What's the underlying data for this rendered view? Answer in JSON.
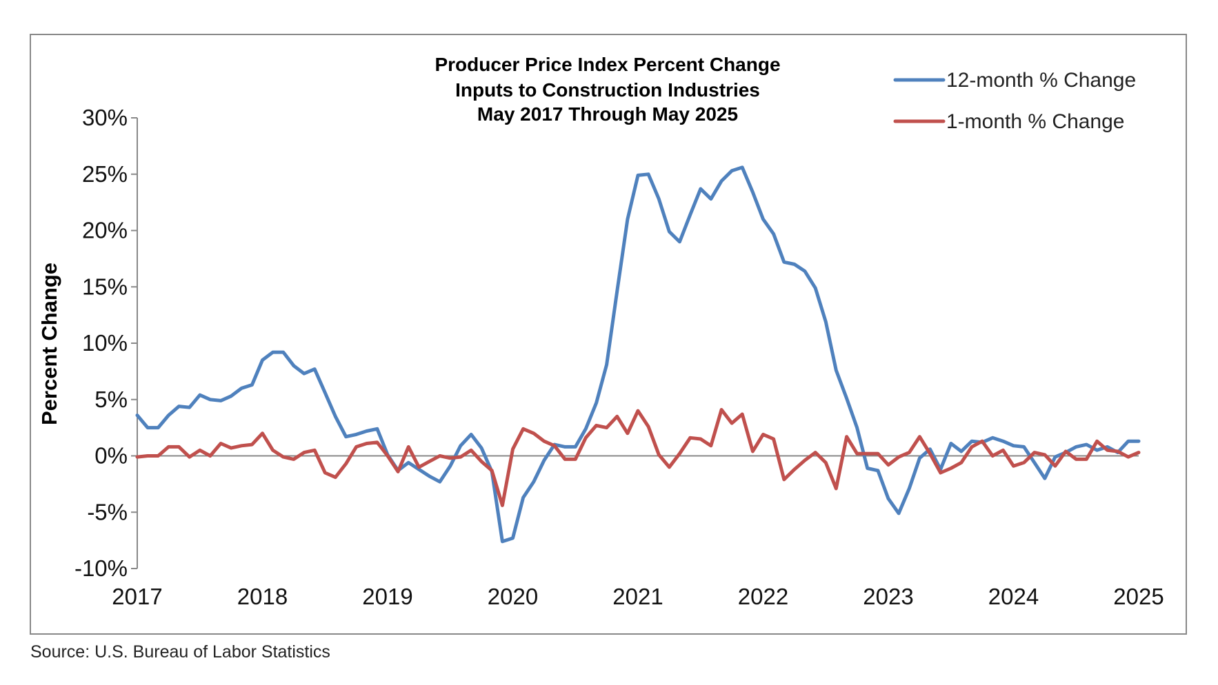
{
  "source_note": "Source: U.S. Bureau of Labor Statistics",
  "chart_data": {
    "type": "line",
    "title_lines": [
      "Producer Price Index Percent Change",
      "Inputs to Construction Industries",
      "May 2017 Through May 2025"
    ],
    "xlabel": "",
    "ylabel": "Percent Change",
    "xlim": [
      2017,
      2025
    ],
    "ylim": [
      -10,
      30
    ],
    "x_ticks": [
      2017,
      2018,
      2019,
      2020,
      2021,
      2022,
      2023,
      2024,
      2025
    ],
    "x_tick_labels": [
      "2017",
      "2018",
      "2019",
      "2020",
      "2021",
      "2022",
      "2023",
      "2024",
      "2025"
    ],
    "y_ticks": [
      -10,
      -5,
      0,
      5,
      10,
      15,
      20,
      25,
      30
    ],
    "y_tick_labels": [
      "-10%",
      "-5%",
      "0%",
      "5%",
      "10%",
      "15%",
      "20%",
      "25%",
      "30%"
    ],
    "grid": false,
    "zero_line": true,
    "legend_position": "top-right",
    "colors": {
      "12-month": "#4f81bd",
      "1-month": "#c0504d",
      "frame": "#888888",
      "axis": "#888888"
    },
    "series": [
      {
        "name": "12-month % Change",
        "color": "#4f81bd",
        "x": [
          2017.0,
          2017.083,
          2017.167,
          2017.25,
          2017.333,
          2017.417,
          2017.5,
          2017.583,
          2017.667,
          2017.75,
          2017.833,
          2017.917,
          2018.0,
          2018.083,
          2018.167,
          2018.25,
          2018.333,
          2018.417,
          2018.5,
          2018.583,
          2018.667,
          2018.75,
          2018.833,
          2018.917,
          2019.0,
          2019.083,
          2019.167,
          2019.25,
          2019.333,
          2019.417,
          2019.5,
          2019.583,
          2019.667,
          2019.75,
          2019.833,
          2019.917,
          2020.0,
          2020.083,
          2020.167,
          2020.25,
          2020.333,
          2020.417,
          2020.5,
          2020.583,
          2020.667,
          2020.75,
          2020.833,
          2020.917,
          2021.0,
          2021.083,
          2021.167,
          2021.25,
          2021.333,
          2021.417,
          2021.5,
          2021.583,
          2021.667,
          2021.75,
          2021.833,
          2021.917,
          2022.0,
          2022.083,
          2022.167,
          2022.25,
          2022.333,
          2022.417,
          2022.5,
          2022.583,
          2022.667,
          2022.75,
          2022.833,
          2022.917,
          2023.0,
          2023.083,
          2023.167,
          2023.25,
          2023.333,
          2023.417,
          2023.5,
          2023.583,
          2023.667,
          2023.75,
          2023.833,
          2023.917,
          2024.0,
          2024.083,
          2024.167,
          2024.25,
          2024.333,
          2024.417,
          2024.5,
          2024.583,
          2024.667,
          2024.75,
          2024.833,
          2024.917,
          2025.0
        ],
        "values": [
          3.6,
          2.5,
          2.5,
          3.6,
          4.4,
          4.3,
          5.4,
          5.0,
          4.9,
          5.3,
          6.0,
          6.3,
          8.5,
          9.2,
          9.2,
          8.0,
          7.3,
          7.7,
          5.6,
          3.5,
          1.7,
          1.9,
          2.2,
          2.4,
          0.1,
          -1.3,
          -0.6,
          -1.2,
          -1.8,
          -2.3,
          -0.9,
          0.9,
          1.9,
          0.7,
          -1.4,
          -7.6,
          -7.3,
          -3.7,
          -2.3,
          -0.4,
          1.0,
          0.8,
          0.8,
          2.4,
          4.7,
          8.1,
          14.6,
          21.0,
          24.9,
          25.0,
          22.8,
          19.9,
          19.0,
          21.4,
          23.7,
          22.8,
          24.4,
          25.3,
          25.6,
          23.4,
          21.0,
          19.7,
          17.2,
          17.0,
          16.4,
          14.9,
          11.9,
          7.6,
          5.1,
          2.5,
          -1.1,
          -1.3,
          -3.8,
          -5.1,
          -2.9,
          -0.2,
          0.6,
          -1.2,
          1.1,
          0.4,
          1.3,
          1.2,
          1.6,
          1.3,
          0.9,
          0.8,
          -0.6,
          -2.0,
          -0.1,
          0.3,
          0.8,
          1.0,
          0.5,
          0.8,
          0.3,
          1.3,
          1.3
        ]
      },
      {
        "name": "1-month % Change",
        "color": "#c0504d",
        "x": [
          2017.0,
          2017.083,
          2017.167,
          2017.25,
          2017.333,
          2017.417,
          2017.5,
          2017.583,
          2017.667,
          2017.75,
          2017.833,
          2017.917,
          2018.0,
          2018.083,
          2018.167,
          2018.25,
          2018.333,
          2018.417,
          2018.5,
          2018.583,
          2018.667,
          2018.75,
          2018.833,
          2018.917,
          2019.0,
          2019.083,
          2019.167,
          2019.25,
          2019.333,
          2019.417,
          2019.5,
          2019.583,
          2019.667,
          2019.75,
          2019.833,
          2019.917,
          2020.0,
          2020.083,
          2020.167,
          2020.25,
          2020.333,
          2020.417,
          2020.5,
          2020.583,
          2020.667,
          2020.75,
          2020.833,
          2020.917,
          2021.0,
          2021.083,
          2021.167,
          2021.25,
          2021.333,
          2021.417,
          2021.5,
          2021.583,
          2021.667,
          2021.75,
          2021.833,
          2021.917,
          2022.0,
          2022.083,
          2022.167,
          2022.25,
          2022.333,
          2022.417,
          2022.5,
          2022.583,
          2022.667,
          2022.75,
          2022.833,
          2022.917,
          2023.0,
          2023.083,
          2023.167,
          2023.25,
          2023.333,
          2023.417,
          2023.5,
          2023.583,
          2023.667,
          2023.75,
          2023.833,
          2023.917,
          2024.0,
          2024.083,
          2024.167,
          2024.25,
          2024.333,
          2024.417,
          2024.5,
          2024.583,
          2024.667,
          2024.75,
          2024.833,
          2024.917,
          2025.0
        ],
        "values": [
          -0.1,
          0.0,
          0.0,
          0.8,
          0.8,
          -0.1,
          0.5,
          0.0,
          1.1,
          0.7,
          0.9,
          1.0,
          2.0,
          0.5,
          -0.1,
          -0.3,
          0.3,
          0.5,
          -1.5,
          -1.9,
          -0.7,
          0.8,
          1.1,
          1.2,
          0.0,
          -1.4,
          0.8,
          -1.0,
          -0.5,
          0.0,
          -0.2,
          -0.1,
          0.5,
          -0.5,
          -1.3,
          -4.4,
          0.6,
          2.4,
          2.0,
          1.3,
          0.9,
          -0.3,
          -0.3,
          1.6,
          2.7,
          2.5,
          3.5,
          2.0,
          4.0,
          2.6,
          0.1,
          -1.0,
          0.2,
          1.6,
          1.5,
          0.9,
          4.1,
          2.9,
          3.7,
          0.4,
          1.9,
          1.5,
          -2.1,
          -1.2,
          -0.4,
          0.3,
          -0.6,
          -2.9,
          1.7,
          0.2,
          0.2,
          0.2,
          -0.8,
          -0.1,
          0.3,
          1.7,
          0.2,
          -1.5,
          -1.1,
          -0.6,
          0.8,
          1.3,
          0.0,
          0.5,
          -0.9,
          -0.6,
          0.3,
          0.1,
          -0.9,
          0.4,
          -0.3,
          -0.3,
          1.3,
          0.5,
          0.4,
          -0.1,
          0.3
        ]
      }
    ]
  }
}
